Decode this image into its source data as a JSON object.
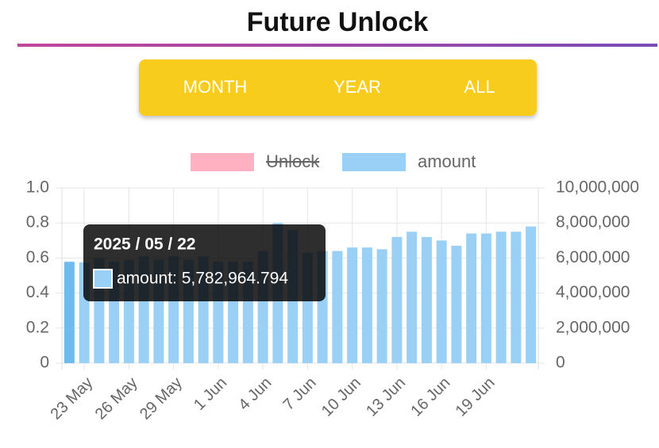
{
  "header": {
    "title": "Future Unlock"
  },
  "tabs": [
    "MONTH",
    "YEAR",
    "ALL"
  ],
  "chart_data": {
    "type": "bar",
    "categories": [
      null,
      "23 May",
      null,
      null,
      "26 May",
      null,
      null,
      "29 May",
      null,
      null,
      "1 Jun",
      null,
      null,
      "4 Jun",
      null,
      null,
      "7 Jun",
      null,
      null,
      "10 Jun",
      null,
      null,
      "13 Jun",
      null,
      null,
      "16 Jun",
      null,
      null,
      "19 Jun",
      null,
      null,
      null
    ],
    "series": [
      {
        "name": "Unlock",
        "color": "#ffb1c1",
        "hidden": true,
        "values": [
          null,
          null,
          null,
          null,
          null,
          null,
          null,
          null,
          null,
          null,
          null,
          null,
          null,
          null,
          null,
          null,
          null,
          null,
          null,
          null,
          null,
          null,
          null,
          null,
          null,
          null,
          null,
          null,
          null,
          null,
          null,
          null
        ]
      },
      {
        "name": "amount",
        "color": "#9ad0f5",
        "axis": "y2",
        "values": [
          5782964.794,
          5750000,
          6000000,
          5800000,
          5900000,
          6100000,
          5900000,
          6100000,
          5900000,
          6100000,
          5800000,
          5800000,
          5800000,
          6400000,
          8000000,
          7600000,
          6300000,
          6400000,
          6400000,
          6600000,
          6600000,
          6500000,
          7200000,
          7500000,
          7200000,
          7000000,
          6700000,
          7400000,
          7400000,
          7500000,
          7500000,
          7800000
        ]
      }
    ],
    "ylim": [
      0,
      1
    ],
    "yticks": [
      0,
      0.2,
      0.4,
      0.6,
      0.8,
      {
        "value": 1,
        "label": "1.0"
      }
    ],
    "y2lim": [
      0,
      10000000
    ],
    "y2ticks": [
      0,
      {
        "value": 2000000,
        "label": "2,000,000"
      },
      {
        "value": 4000000,
        "label": "4,000,000"
      },
      {
        "value": 6000000,
        "label": "6,000,000"
      },
      {
        "value": 8000000,
        "label": "8,000,000"
      },
      {
        "value": 10000000,
        "label": "10,000,000"
      }
    ],
    "grid": true,
    "legend": "top",
    "tooltip": {
      "index": 0,
      "title": "2025 / 05 / 22",
      "label": "amount: 5,782,964.794"
    }
  }
}
